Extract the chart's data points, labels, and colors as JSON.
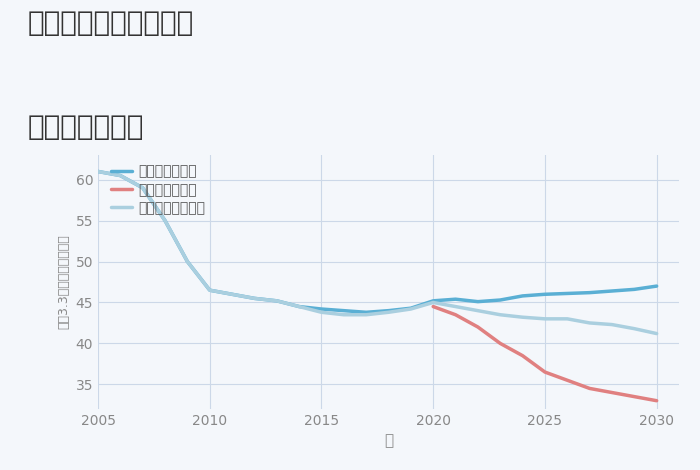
{
  "title_line1": "奈良県奈良市水間町の",
  "title_line2": "土地の価格推移",
  "xlabel": "年",
  "ylabel": "坪（3.3㎡）単価（万円）",
  "background_color": "#f4f7fb",
  "plot_bg_color": "#f4f7fb",
  "ylim": [
    32,
    63
  ],
  "xlim": [
    2005,
    2031
  ],
  "yticks": [
    35,
    40,
    45,
    50,
    55,
    60
  ],
  "xticks": [
    2005,
    2010,
    2015,
    2020,
    2025,
    2030
  ],
  "good_scenario": {
    "label": "グッドシナリオ",
    "color": "#5aafd4",
    "linewidth": 2.5,
    "x": [
      2005,
      2006,
      2007,
      2008,
      2009,
      2010,
      2011,
      2012,
      2013,
      2014,
      2015,
      2016,
      2017,
      2018,
      2019,
      2020,
      2021,
      2022,
      2023,
      2024,
      2025,
      2026,
      2027,
      2028,
      2029,
      2030
    ],
    "y": [
      61,
      60.5,
      59,
      55,
      50,
      46.5,
      46.0,
      45.5,
      45.2,
      44.5,
      44.2,
      44.0,
      43.8,
      44.0,
      44.3,
      45.2,
      45.4,
      45.1,
      45.3,
      45.8,
      46.0,
      46.1,
      46.2,
      46.4,
      46.6,
      47.0
    ]
  },
  "bad_scenario": {
    "label": "バッドシナリオ",
    "color": "#e08080",
    "linewidth": 2.5,
    "x": [
      2020,
      2021,
      2022,
      2023,
      2024,
      2025,
      2026,
      2027,
      2028,
      2029,
      2030
    ],
    "y": [
      44.5,
      43.5,
      42.0,
      40.0,
      38.5,
      36.5,
      35.5,
      34.5,
      34.0,
      33.5,
      33.0
    ]
  },
  "normal_scenario": {
    "label": "ノーマルシナリオ",
    "color": "#aacfdf",
    "linewidth": 2.5,
    "x": [
      2005,
      2006,
      2007,
      2008,
      2009,
      2010,
      2011,
      2012,
      2013,
      2014,
      2015,
      2016,
      2017,
      2018,
      2019,
      2020,
      2021,
      2022,
      2023,
      2024,
      2025,
      2026,
      2027,
      2028,
      2029,
      2030
    ],
    "y": [
      61,
      60.5,
      59,
      55,
      50,
      46.5,
      46.0,
      45.5,
      45.2,
      44.5,
      43.8,
      43.5,
      43.5,
      43.8,
      44.2,
      45.0,
      44.5,
      44.0,
      43.5,
      43.2,
      43.0,
      43.0,
      42.5,
      42.3,
      41.8,
      41.2
    ]
  },
  "title_color": "#333333",
  "axis_color": "#888888",
  "grid_color": "#ccd8e8",
  "legend_text_color": "#555555",
  "title_fontsize": 20,
  "legend_fontsize": 10,
  "tick_fontsize": 10,
  "ylabel_fontsize": 9,
  "xlabel_fontsize": 11
}
